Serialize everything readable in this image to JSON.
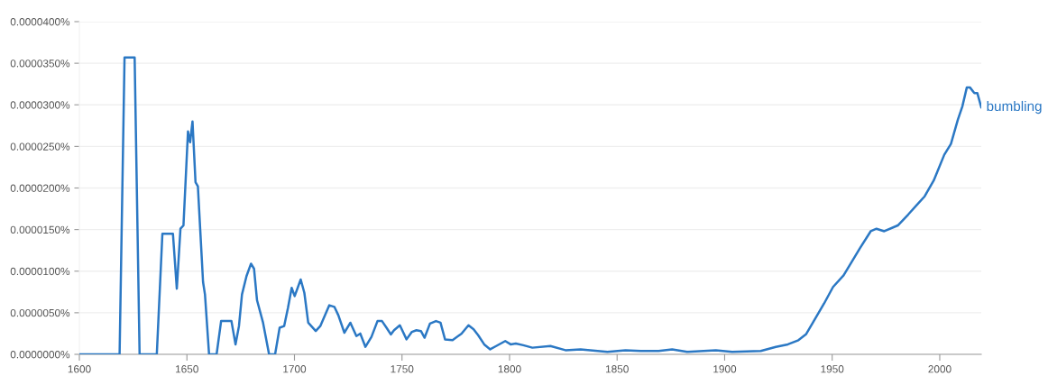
{
  "chart_data": {
    "type": "line",
    "x": [
      1600,
      1618.7,
      1621,
      1625.7,
      1628,
      1636,
      1638.6,
      1643.5,
      1645.3,
      1647,
      1648.4,
      1650.5,
      1651.5,
      1652.6,
      1654,
      1655.1,
      1657.5,
      1658.4,
      1660.3,
      1663.8,
      1665.9,
      1670.7,
      1672.6,
      1674.2,
      1675.6,
      1677.7,
      1679.8,
      1681.2,
      1682.6,
      1685.4,
      1688.2,
      1691,
      1693.1,
      1695.2,
      1697,
      1698.7,
      1700.1,
      1702.9,
      1704.6,
      1706.4,
      1709.9,
      1712,
      1716.2,
      1718.6,
      1720.4,
      1723.2,
      1726,
      1728.8,
      1730.6,
      1733,
      1735.8,
      1738.6,
      1740.7,
      1742.8,
      1744.8,
      1746.3,
      1749,
      1752.1,
      1754.6,
      1756.7,
      1758.8,
      1760.5,
      1763,
      1765.8,
      1767.9,
      1770,
      1773.5,
      1777.7,
      1780.9,
      1783.3,
      1785.4,
      1788.2,
      1791,
      1793.8,
      1798,
      1800.5,
      1802.9,
      1806.4,
      1810.6,
      1819,
      1826,
      1833,
      1845.5,
      1853.9,
      1860.9,
      1869.3,
      1875.6,
      1882.6,
      1895.9,
      1903.5,
      1916.8,
      1923.8,
      1929.4,
      1934.3,
      1937.8,
      1941,
      1946.2,
      1950.4,
      1955.3,
      1963,
      1967.9,
      1970.6,
      1974.2,
      1980.5,
      1985.3,
      1989.5,
      1993,
      1997.2,
      2002.1,
      2005.2,
      2008.4,
      2010.5,
      2012.6,
      2014,
      2016.1,
      2017.5,
      2019.3
    ],
    "series": [
      {
        "name": "bumbling",
        "color": "#2b78c4",
        "values": [
          0,
          0,
          3.57e-05,
          3.57e-05,
          0,
          0,
          1.45e-05,
          1.45e-05,
          7.9e-06,
          1.51e-05,
          1.55e-05,
          2.68e-05,
          2.55e-05,
          2.8e-05,
          2.07e-05,
          2.02e-05,
          8.7e-06,
          7.2e-06,
          0,
          0,
          4e-06,
          4e-06,
          1.2e-06,
          3.4e-06,
          7.2e-06,
          9.4e-06,
          1.09e-05,
          1.03e-05,
          6.5e-06,
          3.8e-06,
          0,
          0,
          3.2e-06,
          3.4e-06,
          5.6e-06,
          8e-06,
          7e-06,
          9e-06,
          7.4e-06,
          3.8e-06,
          2.8e-06,
          3.4e-06,
          5.9e-06,
          5.7e-06,
          4.7e-06,
          2.6e-06,
          3.8e-06,
          2.2e-06,
          2.5e-06,
          9e-07,
          2.1e-06,
          4e-06,
          4e-06,
          3.2e-06,
          2.4e-06,
          2.9e-06,
          3.5e-06,
          1.8e-06,
          2.7e-06,
          2.9e-06,
          2.8e-06,
          2e-06,
          3.7e-06,
          4e-06,
          3.8e-06,
          1.8e-06,
          1.7e-06,
          2.5e-06,
          3.5e-06,
          3e-06,
          2.3e-06,
          1.2e-06,
          6e-07,
          1e-06,
          1.6e-06,
          1.2e-06,
          1.3e-06,
          1.1e-06,
          8e-07,
          1e-06,
          5e-07,
          6e-07,
          3e-07,
          5e-07,
          4e-07,
          4e-07,
          6e-07,
          3e-07,
          5e-07,
          3e-07,
          4e-07,
          9e-07,
          1.2e-06,
          1.7e-06,
          2.4e-06,
          3.8e-06,
          6.1e-06,
          8.1e-06,
          9.5e-06,
          1.28e-05,
          1.48e-05,
          1.51e-05,
          1.48e-05,
          1.55e-05,
          1.68e-05,
          1.8e-05,
          1.9e-05,
          2.09e-05,
          2.4e-05,
          2.53e-05,
          2.82e-05,
          2.98e-05,
          3.21e-05,
          3.21e-05,
          3.14e-05,
          3.14e-05,
          2.97e-05
        ]
      }
    ],
    "xlim": [
      1600,
      2019.3
    ],
    "xticks": [
      1600,
      1650,
      1700,
      1750,
      1800,
      1850,
      1900,
      1950,
      2000
    ],
    "ylim": [
      0,
      4e-05
    ],
    "yticks": [
      {
        "value": 0,
        "label": "0.0000000%"
      },
      {
        "value": 5e-06,
        "label": "0.0000050%"
      },
      {
        "value": 1e-05,
        "label": "0.0000100%"
      },
      {
        "value": 1.5e-05,
        "label": "0.0000150%"
      },
      {
        "value": 2e-05,
        "label": "0.0000200%"
      },
      {
        "value": 2.5e-05,
        "label": "0.0000250%"
      },
      {
        "value": 3e-05,
        "label": "0.0000300%"
      },
      {
        "value": 3.5e-05,
        "label": "0.0000350%"
      },
      {
        "value": 4e-05,
        "label": "0.0000400%"
      }
    ],
    "grid": "y",
    "marker": "none",
    "line_style": "solid"
  }
}
